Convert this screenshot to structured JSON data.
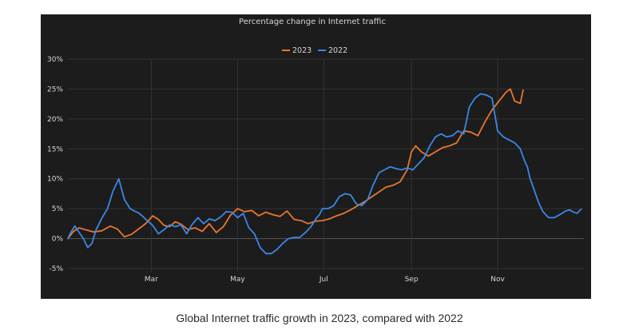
{
  "caption": "Global Internet traffic growth in 2023, compared with 2022",
  "chart_data": {
    "type": "line",
    "title": "Percentage change in Internet traffic",
    "xlabel": "",
    "ylabel": "",
    "ylim": [
      -5,
      30
    ],
    "yticks": [
      -5,
      0,
      5,
      10,
      15,
      20,
      25,
      30
    ],
    "ytick_labels": [
      "-5%",
      "0%",
      "5%",
      "10%",
      "15%",
      "20%",
      "25%",
      "30%"
    ],
    "xlim": [
      0,
      365
    ],
    "xticks": [
      {
        "label": "Mar",
        "day": 59
      },
      {
        "label": "May",
        "day": 120
      },
      {
        "label": "Jul",
        "day": 181
      },
      {
        "label": "Sep",
        "day": 243
      },
      {
        "label": "Nov",
        "day": 304
      }
    ],
    "grid": true,
    "legend_position": "top-center",
    "series": [
      {
        "name": "2023",
        "color": "#e8772e",
        "x": [
          0,
          4,
          8,
          12,
          18,
          24,
          30,
          35,
          40,
          45,
          50,
          55,
          60,
          64,
          68,
          72,
          76,
          80,
          85,
          90,
          95,
          100,
          105,
          110,
          115,
          120,
          125,
          130,
          135,
          140,
          145,
          150,
          155,
          160,
          165,
          170,
          175,
          180,
          185,
          190,
          195,
          200,
          205,
          210,
          215,
          220,
          225,
          230,
          235,
          240,
          243,
          246,
          250,
          255,
          260,
          265,
          270,
          275,
          280,
          285,
          290,
          295,
          300,
          305,
          310,
          313,
          316,
          320,
          322
        ],
        "y": [
          0,
          1.2,
          1.8,
          1.5,
          1.1,
          1.3,
          2.1,
          1.6,
          0.3,
          0.7,
          1.6,
          2.5,
          3.8,
          3.2,
          2.2,
          2.0,
          2.8,
          2.4,
          1.5,
          1.8,
          1.2,
          2.5,
          1.0,
          2.0,
          3.9,
          5.0,
          4.5,
          4.7,
          3.8,
          4.4,
          4.0,
          3.7,
          4.6,
          3.2,
          3.0,
          2.5,
          2.9,
          3.0,
          3.3,
          3.8,
          4.2,
          4.8,
          5.5,
          6.2,
          7.0,
          7.8,
          8.6,
          8.9,
          9.5,
          11.5,
          14.5,
          15.5,
          14.5,
          13.8,
          14.5,
          15.2,
          15.5,
          16.0,
          18.0,
          17.8,
          17.2,
          19.5,
          21.5,
          23.0,
          24.5,
          25.0,
          23.0,
          22.6,
          24.8
        ]
      },
      {
        "name": "2022",
        "color": "#3b87e8",
        "x": [
          0,
          2,
          5,
          8,
          11,
          14,
          17,
          20,
          24,
          28,
          32,
          36,
          40,
          44,
          47,
          50,
          53,
          56,
          60,
          64,
          68,
          72,
          76,
          80,
          84,
          88,
          92,
          96,
          100,
          104,
          108,
          112,
          116,
          120,
          124,
          128,
          132,
          136,
          140,
          144,
          148,
          152,
          156,
          160,
          164,
          168,
          172,
          176,
          178,
          180,
          184,
          188,
          192,
          196,
          200,
          204,
          208,
          212,
          216,
          220,
          224,
          228,
          232,
          236,
          240,
          244,
          248,
          252,
          256,
          260,
          264,
          268,
          272,
          276,
          280,
          284,
          288,
          292,
          296,
          300,
          304,
          308,
          312,
          316,
          320,
          323,
          325,
          327,
          330,
          333,
          336,
          340,
          344,
          348,
          352,
          355,
          357,
          360,
          363
        ],
        "y": [
          0,
          1.0,
          2.1,
          1.0,
          0,
          -1.5,
          -0.8,
          1.5,
          3.4,
          5.0,
          8.0,
          10.0,
          6.5,
          5.0,
          4.6,
          4.3,
          3.7,
          3.0,
          2.2,
          0.8,
          1.5,
          2.3,
          2.0,
          2.3,
          0.8,
          2.4,
          3.5,
          2.5,
          3.3,
          3.0,
          3.6,
          4.5,
          4.4,
          3.5,
          4.2,
          1.8,
          0.8,
          -1.5,
          -2.5,
          -2.5,
          -1.8,
          -0.8,
          0,
          0.2,
          0.2,
          1.0,
          2.0,
          3.5,
          4.0,
          5.0,
          5.0,
          5.5,
          7.0,
          7.5,
          7.3,
          5.8,
          5.5,
          6.5,
          9.0,
          11.0,
          11.5,
          12.0,
          11.7,
          11.5,
          11.8,
          11.5,
          12.5,
          13.5,
          15.5,
          17.0,
          17.5,
          17.0,
          17.2,
          18.0,
          17.5,
          22.0,
          23.5,
          24.2,
          24.0,
          23.5,
          18.0,
          17.0,
          16.5,
          16.0,
          15.0,
          13.0,
          12.0,
          10.0,
          8.0,
          6.0,
          4.5,
          3.5,
          3.5,
          4.0,
          4.6,
          4.8,
          4.5,
          4.2,
          4.9
        ]
      }
    ]
  }
}
